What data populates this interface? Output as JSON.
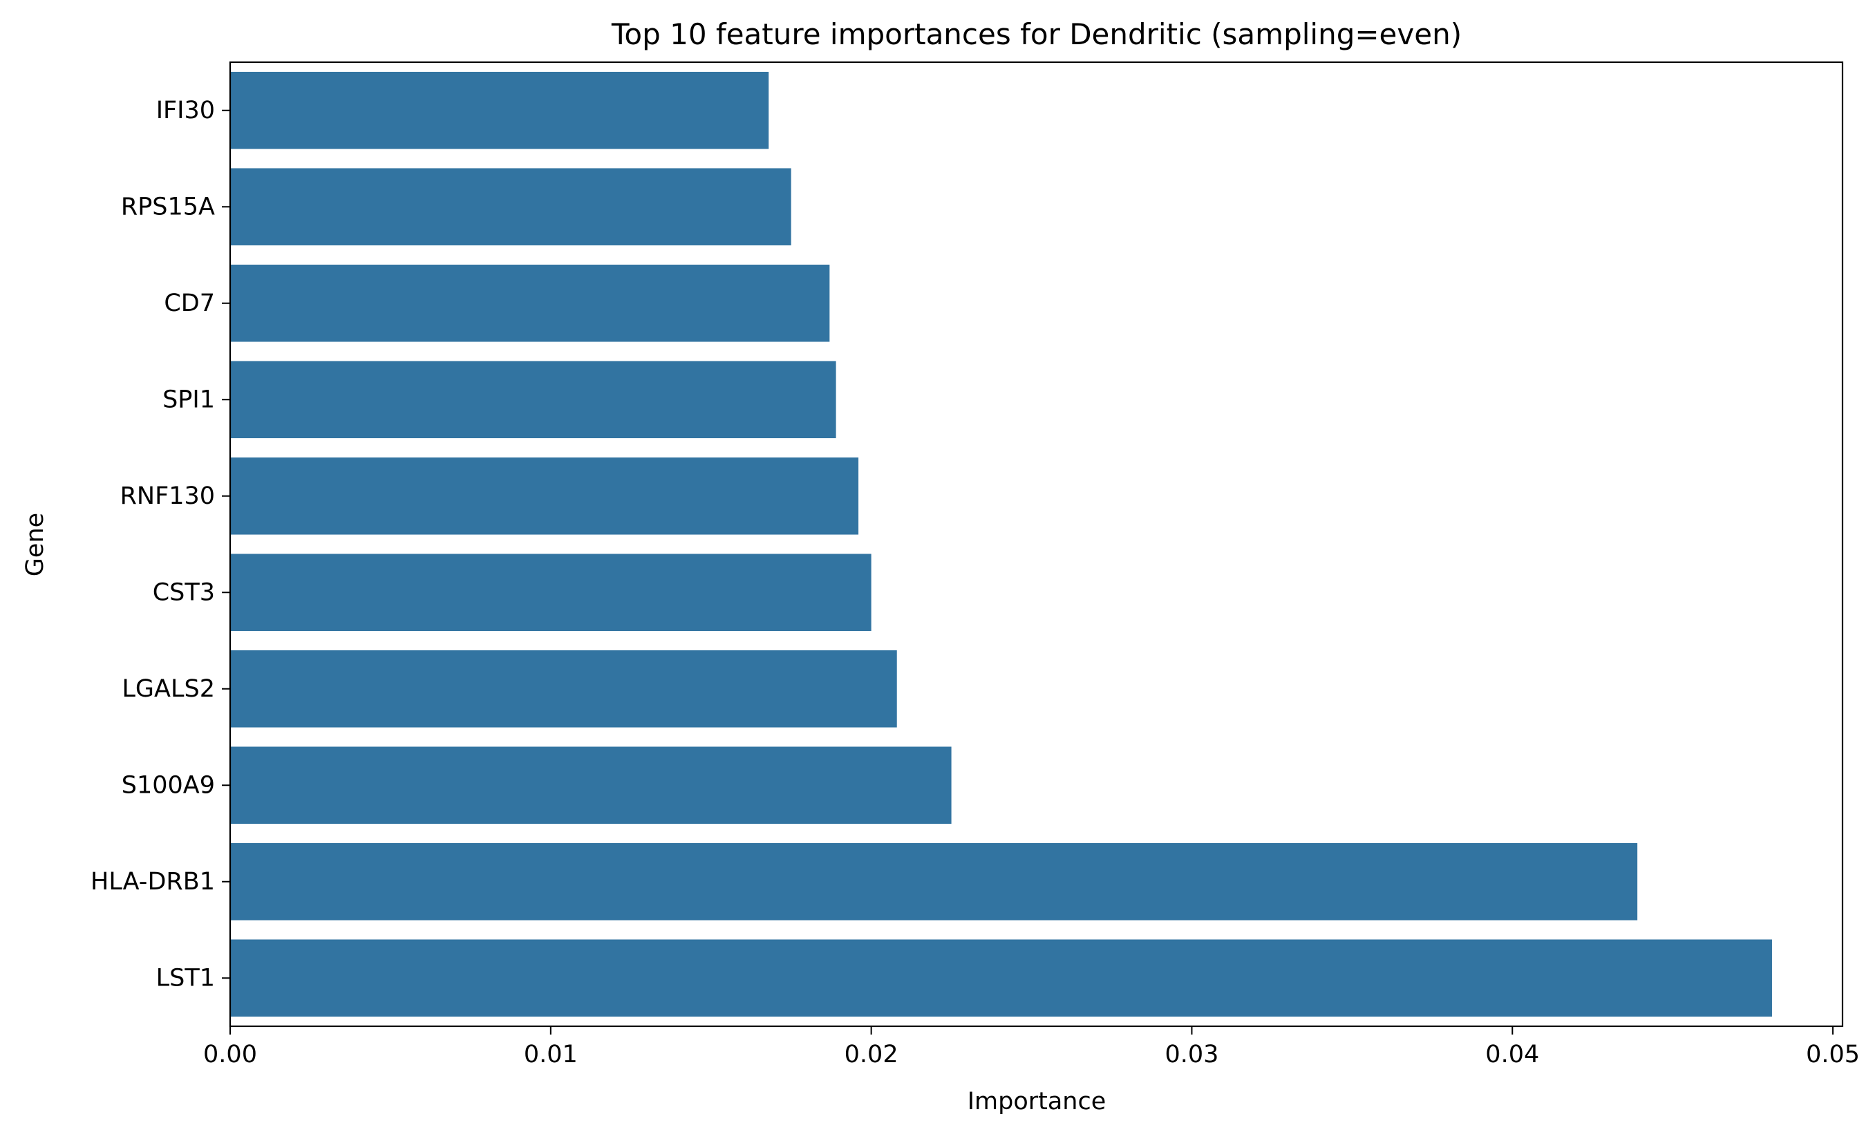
{
  "chart_data": {
    "type": "bar",
    "orientation": "horizontal",
    "title": "Top 10 feature importances for Dendritic (sampling=even)",
    "xlabel": "Importance",
    "ylabel": "Gene",
    "xlim": [
      0,
      0.0503
    ],
    "xticks": [
      0.0,
      0.01,
      0.02,
      0.03,
      0.04,
      0.05
    ],
    "xtick_labels": [
      "0.00",
      "0.01",
      "0.02",
      "0.03",
      "0.04",
      "0.05"
    ],
    "grid": false,
    "legend": "none",
    "bar_color": "#3274a1",
    "categories": [
      "IFI30",
      "RPS15A",
      "CD7",
      "SPI1",
      "RNF130",
      "CST3",
      "LGALS2",
      "S100A9",
      "HLA-DRB1",
      "LST1"
    ],
    "values": [
      0.0168,
      0.0175,
      0.0187,
      0.0189,
      0.0196,
      0.02,
      0.0208,
      0.0225,
      0.0439,
      0.0481
    ]
  }
}
